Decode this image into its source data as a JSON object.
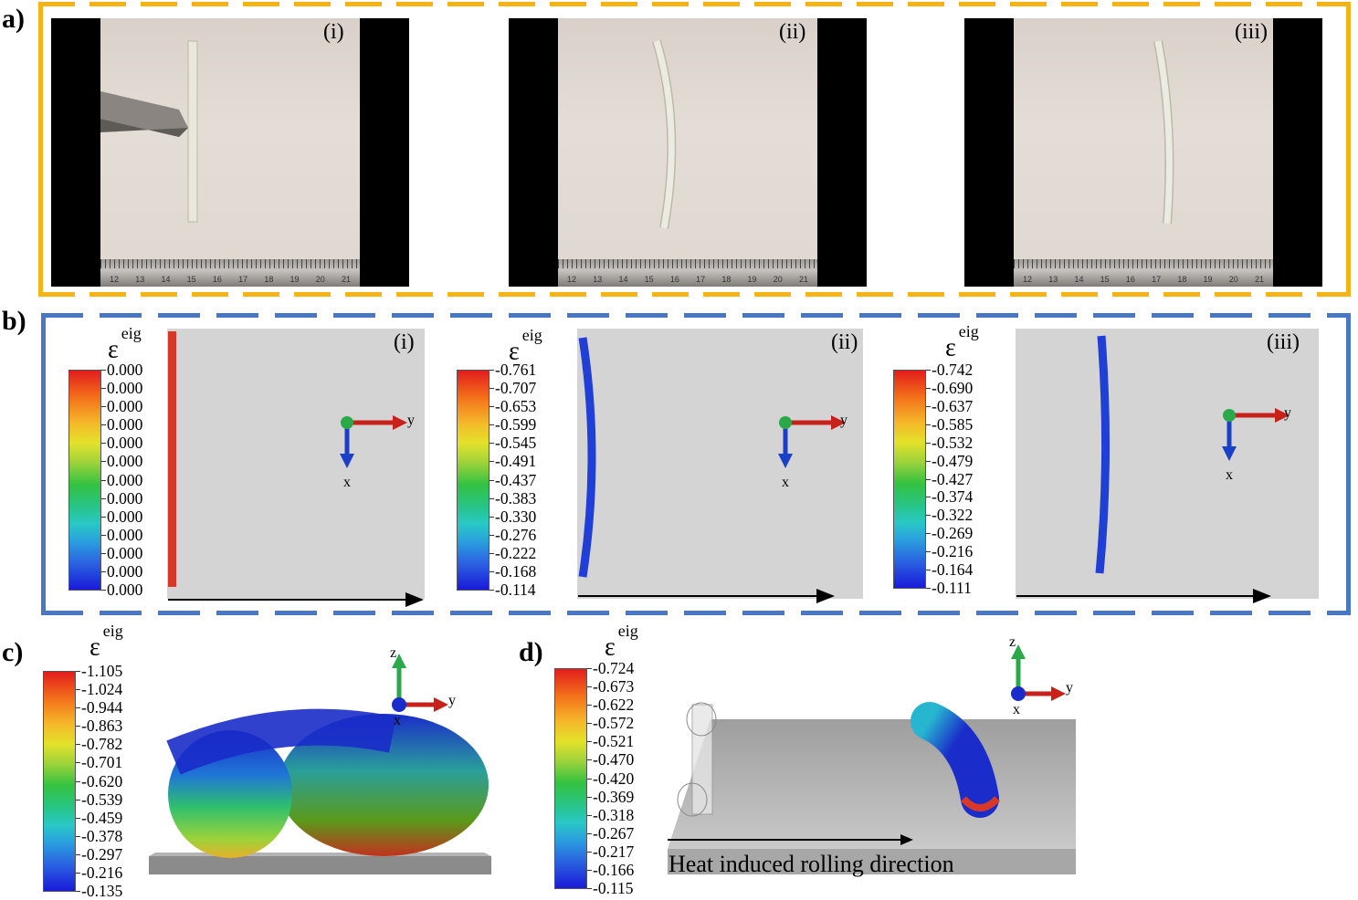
{
  "labels": {
    "a": "a)",
    "b": "b)",
    "c": "c)",
    "d": "d)"
  },
  "sub_labels": [
    "(i)",
    "(ii)",
    "(iii)"
  ],
  "ruler_numbers": [
    "12",
    "13",
    "14",
    "15",
    "16",
    "17",
    "18",
    "19",
    "20",
    "21"
  ],
  "epsilon_symbol": "ε",
  "epsilon_sup": "eig",
  "axes": {
    "x": "x",
    "y": "y",
    "z": "z"
  },
  "colorbars": {
    "b_i": [
      "0.000",
      "0.000",
      "0.000",
      "0.000",
      "0.000",
      "0.000",
      "0.000",
      "0.000",
      "0.000",
      "0.000",
      "0.000",
      "0.000",
      "0.000"
    ],
    "b_ii": [
      "-0.761",
      "-0.707",
      "-0.653",
      "-0.599",
      "-0.545",
      "-0.491",
      "-0.437",
      "-0.383",
      "-0.330",
      "-0.276",
      "-0.222",
      "-0.168",
      "-0.114"
    ],
    "b_iii": [
      "-0.742",
      "-0.690",
      "-0.637",
      "-0.585",
      "-0.532",
      "-0.479",
      "-0.427",
      "-0.374",
      "-0.322",
      "-0.269",
      "-0.216",
      "-0.164",
      "-0.111"
    ],
    "c": [
      "-1.105",
      "-1.024",
      "-0.944",
      "-0.863",
      "-0.782",
      "-0.701",
      "-0.620",
      "-0.539",
      "-0.459",
      "-0.378",
      "-0.297",
      "-0.216",
      "-0.135"
    ],
    "d": [
      "-0.724",
      "-0.673",
      "-0.622",
      "-0.572",
      "-0.521",
      "-0.470",
      "-0.420",
      "-0.369",
      "-0.318",
      "-0.267",
      "-0.217",
      "-0.166",
      "-0.115"
    ]
  },
  "d_caption": "Heat induced rolling direction",
  "colors": {
    "frame_a": "#f5b315",
    "frame_b": "#4a76c6",
    "rod_red": "#d8382a",
    "rod_blue": "#1f3fd6"
  }
}
